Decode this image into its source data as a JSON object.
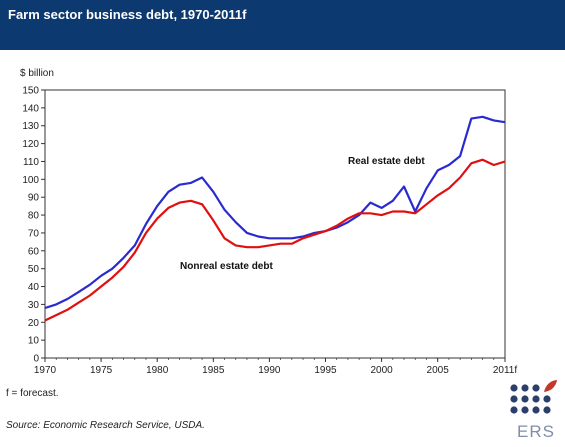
{
  "header": {
    "title": "Farm sector business debt, 1970-2011f",
    "bg_color": "#0c3970"
  },
  "chart_data": {
    "type": "line",
    "title": "Farm sector business debt, 1970-2011f",
    "ylabel": "$ billion",
    "xlabel": "",
    "ylim": [
      0,
      150
    ],
    "xlim": [
      1970,
      2011
    ],
    "y_ticks": [
      "0",
      "10",
      "20",
      "30",
      "40",
      "50",
      "60",
      "70",
      "80",
      "90",
      "100",
      "110",
      "120",
      "130",
      "140",
      "150"
    ],
    "x_ticks": [
      "1970",
      "1975",
      "1980",
      "1985",
      "1990",
      "1995",
      "2000",
      "2005",
      "2011f"
    ],
    "grid": false,
    "x": [
      1970,
      1971,
      1972,
      1973,
      1974,
      1975,
      1976,
      1977,
      1978,
      1979,
      1980,
      1981,
      1982,
      1983,
      1984,
      1985,
      1986,
      1987,
      1988,
      1989,
      1990,
      1991,
      1992,
      1993,
      1994,
      1995,
      1996,
      1997,
      1998,
      1999,
      2000,
      2001,
      2002,
      2003,
      2004,
      2005,
      2006,
      2007,
      2008,
      2009,
      2010,
      2011
    ],
    "series": [
      {
        "name": "Real estate debt",
        "color": "#2a2ad0",
        "values": [
          28,
          30,
          33,
          37,
          41,
          46,
          50,
          56,
          63,
          75,
          85,
          93,
          97,
          98,
          101,
          93,
          83,
          76,
          70,
          68,
          67,
          67,
          67,
          68,
          70,
          71,
          73,
          76,
          80,
          87,
          84,
          88,
          96,
          82,
          95,
          105,
          108,
          113,
          134,
          135,
          133,
          132
        ]
      },
      {
        "name": "Nonreal estate debt",
        "color": "#e01010",
        "values": [
          21,
          24,
          27,
          31,
          35,
          40,
          45,
          51,
          59,
          70,
          78,
          84,
          87,
          88,
          86,
          77,
          67,
          63,
          62,
          62,
          63,
          64,
          64,
          67,
          69,
          71,
          74,
          78,
          81,
          81,
          80,
          82,
          82,
          81,
          86,
          91,
          95,
          101,
          109,
          111,
          108,
          110
        ]
      }
    ]
  },
  "footnote": "f = forecast.",
  "source": "Source: Economic Research Service, USDA.",
  "logo": {
    "text": "ERS",
    "dot_color": "#2b3f6b",
    "leaf_color": "#c0392b"
  }
}
